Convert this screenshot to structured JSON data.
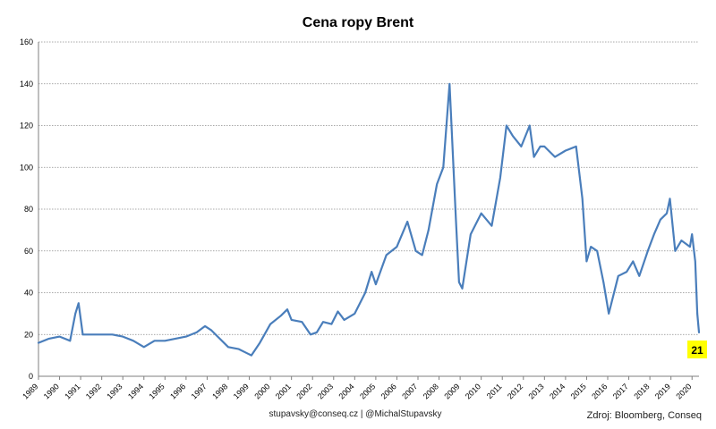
{
  "chart_data": {
    "type": "line",
    "title": "Cena ropy Brent",
    "ylim": [
      0,
      160
    ],
    "y_ticks": [
      0,
      20,
      40,
      60,
      80,
      100,
      120,
      140,
      160
    ],
    "x_range": [
      1989,
      2020.33
    ],
    "x_ticks": [
      "1989",
      "1990",
      "1991",
      "1992",
      "1993",
      "1994",
      "1995",
      "1996",
      "1997",
      "1998",
      "1999",
      "2000",
      "2001",
      "2002",
      "2003",
      "2004",
      "2005",
      "2006",
      "2007",
      "2008",
      "2009",
      "2010",
      "2011",
      "2012",
      "2013",
      "2014",
      "2015",
      "2016",
      "2017",
      "2018",
      "2019",
      "2020"
    ],
    "grid": true,
    "series": [
      {
        "color": "#4a7ebb",
        "x": [
          1989.0,
          1989.5,
          1990.0,
          1990.5,
          1990.75,
          1990.9,
          1991.1,
          1991.5,
          1992.0,
          1992.5,
          1993.0,
          1993.5,
          1994.0,
          1994.5,
          1995.0,
          1995.5,
          1996.0,
          1996.5,
          1996.9,
          1997.2,
          1997.5,
          1998.0,
          1998.5,
          1998.9,
          1999.1,
          1999.5,
          2000.0,
          2000.5,
          2000.8,
          2001.0,
          2001.5,
          2001.9,
          2002.2,
          2002.5,
          2002.9,
          2003.2,
          2003.5,
          2004.0,
          2004.5,
          2004.8,
          2005.0,
          2005.5,
          2006.0,
          2006.5,
          2006.9,
          2007.2,
          2007.5,
          2007.9,
          2008.2,
          2008.5,
          2008.8,
          2008.95,
          2009.1,
          2009.5,
          2010.0,
          2010.5,
          2010.9,
          2011.2,
          2011.5,
          2011.9,
          2012.3,
          2012.5,
          2012.8,
          2013.0,
          2013.5,
          2014.0,
          2014.5,
          2014.8,
          2015.0,
          2015.2,
          2015.5,
          2015.8,
          2016.05,
          2016.5,
          2016.9,
          2017.2,
          2017.5,
          2017.9,
          2018.2,
          2018.5,
          2018.8,
          2018.95,
          2019.2,
          2019.5,
          2019.9,
          2020.0,
          2020.15,
          2020.25,
          2020.33
        ],
        "y": [
          16,
          18,
          19,
          17,
          30,
          35,
          20,
          20,
          20,
          20,
          19,
          17,
          14,
          17,
          17,
          18,
          19,
          21,
          24,
          22,
          19,
          14,
          13,
          11,
          10,
          16,
          25,
          29,
          32,
          27,
          26,
          20,
          21,
          26,
          25,
          31,
          27,
          30,
          40,
          50,
          44,
          58,
          62,
          74,
          60,
          58,
          70,
          92,
          100,
          140,
          75,
          45,
          42,
          68,
          78,
          72,
          95,
          120,
          115,
          110,
          120,
          105,
          110,
          110,
          105,
          108,
          110,
          85,
          55,
          62,
          60,
          45,
          30,
          48,
          50,
          55,
          48,
          60,
          68,
          75,
          78,
          85,
          60,
          65,
          62,
          68,
          55,
          30,
          21
        ]
      }
    ],
    "last_value_label": "21",
    "last_value_color": "#ffff00"
  },
  "footer": {
    "contact": "stupavsky@conseq.cz  |  @MichalStupavsky",
    "source": "Zdroj: Bloomberg, Conseq"
  }
}
